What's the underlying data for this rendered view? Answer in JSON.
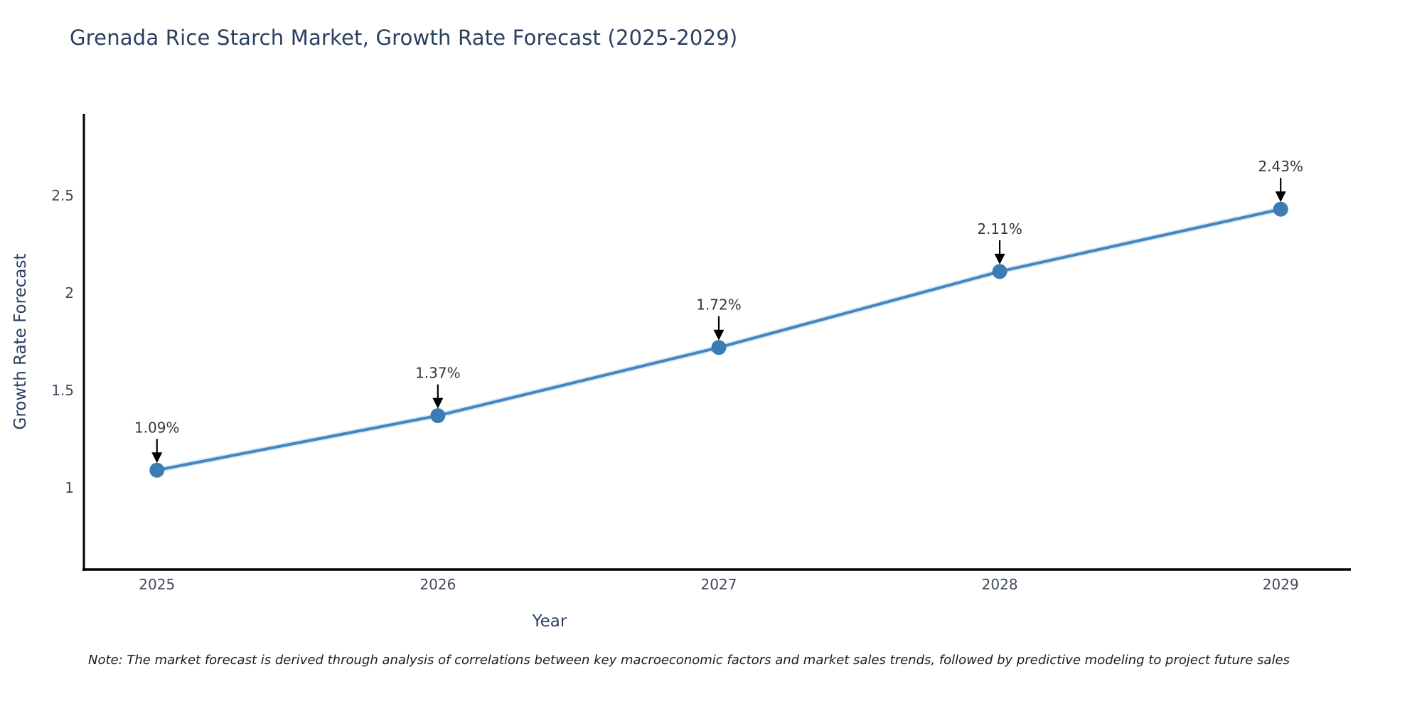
{
  "page": {
    "background": "#ffffff"
  },
  "header": {
    "title": "Grenada Rice Starch Market, Growth Rate Forecast (2025-2029)"
  },
  "note": {
    "text": "Note: The market forecast is derived through analysis of correlations between key macroeconomic factors and market sales trends, followed by predictive modeling to project future sales"
  },
  "chart_data": {
    "type": "line",
    "title": "Grenada Rice Starch Market, Growth Rate Forecast (2025-2029)",
    "xlabel": "Year",
    "ylabel": "Growth Rate Forecast",
    "categories": [
      "2025",
      "2026",
      "2027",
      "2028",
      "2029"
    ],
    "x": [
      2025,
      2026,
      2027,
      2028,
      2029
    ],
    "series": [
      {
        "name": "Growth Rate Forecast",
        "values": [
          1.09,
          1.37,
          1.72,
          2.11,
          2.43
        ],
        "point_labels": [
          "1.09%",
          "1.37%",
          "1.72%",
          "2.11%",
          "2.43%"
        ]
      }
    ],
    "yticks": {
      "values": [
        1,
        1.5,
        2,
        2.5
      ],
      "labels": [
        "1",
        "1.5",
        "2",
        "2.5"
      ]
    },
    "xlim": [
      2024.74,
      2029.25
    ],
    "ylim": [
      0.58,
      2.92
    ],
    "grid": false,
    "legend": false,
    "marker_style": "circle",
    "annotation_style": "value-label-above-with-down-arrow",
    "colors": {
      "line": "#4386c0",
      "line_halo": "#bcd8ee",
      "marker": "#3c7cb4",
      "title": "#2a3f5f",
      "axis_title": "#2a3f5f",
      "tick_label": "#40495a",
      "annotation_text": "#363636",
      "arrow": "#000000",
      "axis_line": "#000000"
    }
  }
}
